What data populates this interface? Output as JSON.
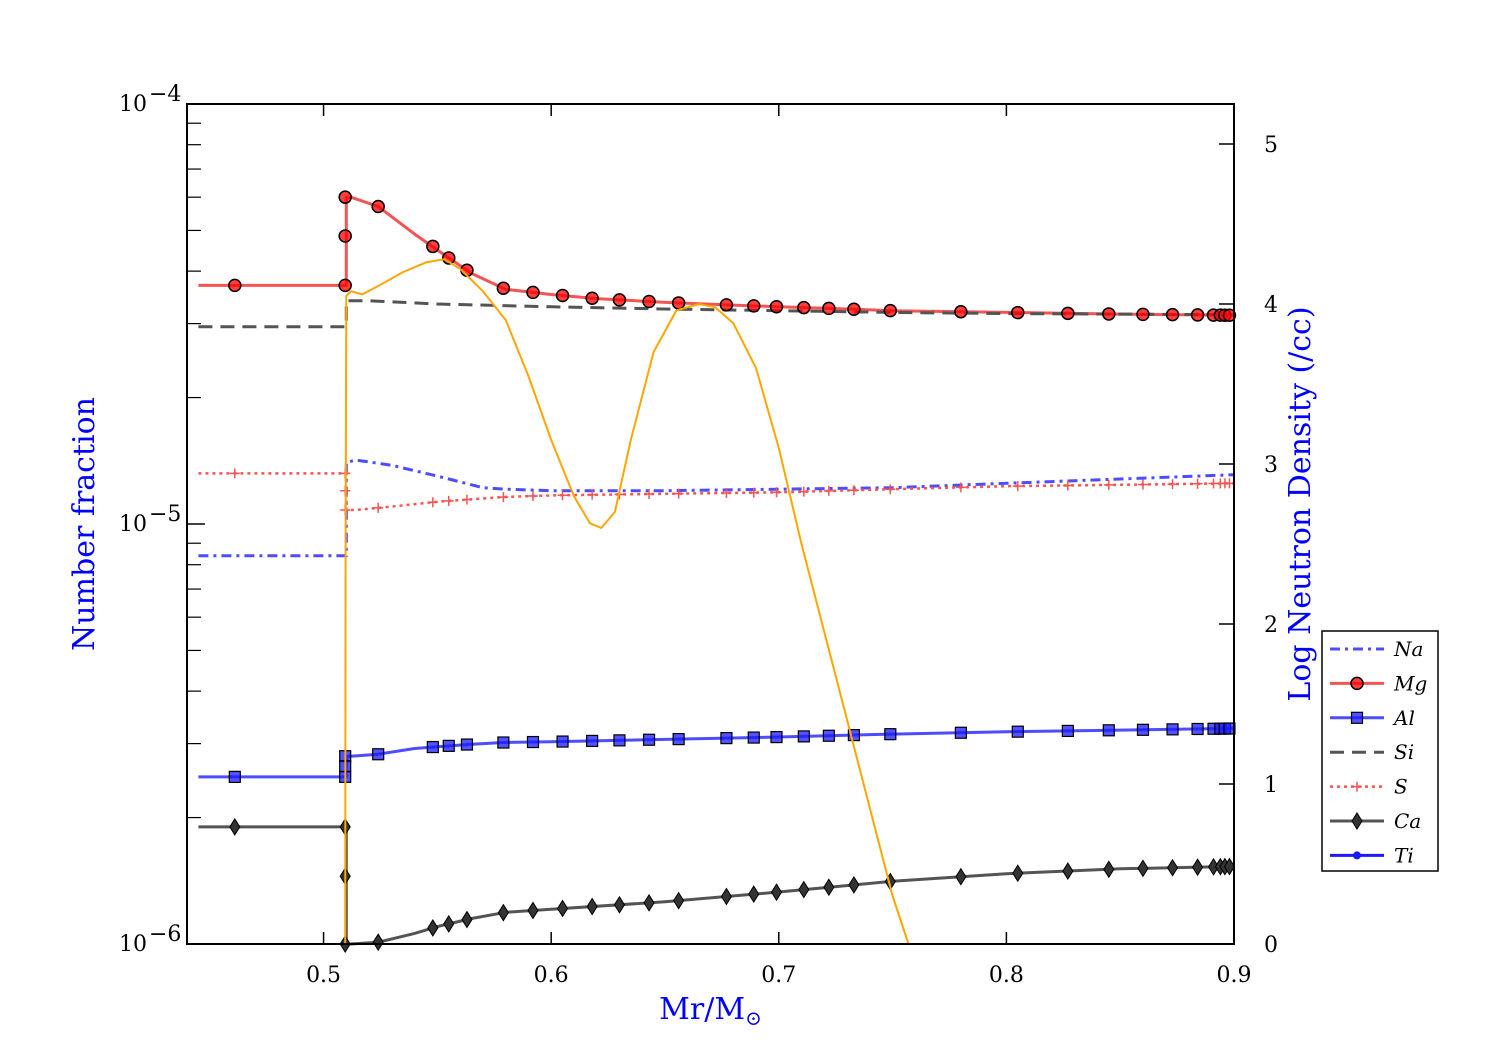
{
  "chart_data": {
    "type": "line",
    "xlabel": "Mr/M",
    "xlabel_sub": "⊙",
    "ylabel": "Number fraction",
    "y2label": "Log Neutron Density (/cc)",
    "label_color": "#0000ff",
    "xlim": [
      0.44,
      0.9
    ],
    "ylim": [
      1e-06,
      0.0001
    ],
    "yscale": "log",
    "y2lim": [
      0,
      5.25
    ],
    "xticks": [
      0.5,
      0.6,
      0.7,
      0.8,
      0.9
    ],
    "xtick_labels": [
      "0.5",
      "0.6",
      "0.7",
      "0.8",
      "0.9"
    ],
    "yticks": [
      0.0001,
      1e-05,
      1e-06
    ],
    "ytick_base": [
      "10",
      "10",
      "10"
    ],
    "ytick_exp": [
      "−4",
      "−5",
      "−6"
    ],
    "y2ticks": [
      0,
      1,
      2,
      3,
      4,
      5
    ],
    "y2tick_labels": [
      "0",
      "1",
      "2",
      "3",
      "4",
      "5"
    ],
    "legend_position": "lower-right outside",
    "series": [
      {
        "name": "Na",
        "color": "#4d4dff",
        "dash": "10,5,3,5",
        "marker": "none",
        "width": 3,
        "x": [
          0.445,
          0.51,
          0.51,
          0.514,
          0.53,
          0.55,
          0.57,
          0.58,
          0.6,
          0.65,
          0.7,
          0.75,
          0.8,
          0.85,
          0.9
        ],
        "y": [
          8.4e-06,
          8.4e-06,
          1.4e-05,
          1.42e-05,
          1.38e-05,
          1.3e-05,
          1.22e-05,
          1.21e-05,
          1.2e-05,
          1.2e-05,
          1.21e-05,
          1.22e-05,
          1.25e-05,
          1.28e-05,
          1.31e-05
        ],
        "markers_x": []
      },
      {
        "name": "Mg",
        "color": "#f55454",
        "dash": "",
        "marker": "circle",
        "width": 3,
        "x": [
          0.445,
          0.46,
          0.51,
          0.51,
          0.512,
          0.524,
          0.54,
          0.555,
          0.565,
          0.58,
          0.6,
          0.62,
          0.65,
          0.68,
          0.7,
          0.73,
          0.75,
          0.8,
          0.85,
          0.9
        ],
        "y": [
          3.7e-05,
          3.7e-05,
          3.7e-05,
          6e-05,
          6e-05,
          5.7e-05,
          4.9e-05,
          4.3e-05,
          3.95e-05,
          3.62e-05,
          3.52e-05,
          3.44e-05,
          3.37e-05,
          3.32e-05,
          3.29e-05,
          3.25e-05,
          3.22e-05,
          3.19e-05,
          3.16e-05,
          3.14e-05
        ],
        "markers_x": [
          0.461,
          0.5095,
          0.5095,
          0.5095,
          0.524,
          0.548,
          0.555,
          0.563,
          0.579,
          0.592,
          0.605,
          0.618,
          0.63,
          0.643,
          0.656,
          0.677,
          0.689,
          0.699,
          0.711,
          0.722,
          0.733,
          0.749,
          0.78,
          0.805,
          0.827,
          0.845,
          0.86,
          0.873,
          0.884,
          0.891,
          0.894,
          0.896,
          0.898
        ]
      },
      {
        "name": "Al",
        "color": "#4d4dff",
        "dash": "",
        "marker": "square",
        "width": 3,
        "x": [
          0.445,
          0.46,
          0.51,
          0.51,
          0.512,
          0.524,
          0.54,
          0.55,
          0.565,
          0.58,
          0.6,
          0.65,
          0.7,
          0.75,
          0.8,
          0.85,
          0.9
        ],
        "y": [
          2.5e-06,
          2.5e-06,
          2.5e-06,
          2.8e-06,
          2.8e-06,
          2.83e-06,
          2.92e-06,
          2.95e-06,
          2.99e-06,
          3.02e-06,
          3.03e-06,
          3.07e-06,
          3.11e-06,
          3.16e-06,
          3.2e-06,
          3.23e-06,
          3.26e-06
        ],
        "markers_x": [
          0.461,
          0.5095,
          0.5095,
          0.5095,
          0.524,
          0.548,
          0.555,
          0.563,
          0.579,
          0.592,
          0.605,
          0.618,
          0.63,
          0.643,
          0.656,
          0.677,
          0.689,
          0.699,
          0.711,
          0.722,
          0.733,
          0.749,
          0.78,
          0.805,
          0.827,
          0.845,
          0.86,
          0.873,
          0.884,
          0.891,
          0.894,
          0.896,
          0.898
        ]
      },
      {
        "name": "Si",
        "color": "#545454",
        "dash": "14,8",
        "marker": "none",
        "width": 3,
        "x": [
          0.445,
          0.51,
          0.51,
          0.52,
          0.55,
          0.6,
          0.65,
          0.7,
          0.75,
          0.8,
          0.85,
          0.9
        ],
        "y": [
          2.95e-05,
          2.95e-05,
          3.4e-05,
          3.4e-05,
          3.34e-05,
          3.29e-05,
          3.25e-05,
          3.22e-05,
          3.19e-05,
          3.17e-05,
          3.16e-05,
          3.15e-05
        ],
        "markers_x": []
      },
      {
        "name": "S",
        "color": "#f55454",
        "dash": "3,4",
        "marker": "plus",
        "width": 2.5,
        "x": [
          0.445,
          0.51,
          0.51,
          0.514,
          0.53,
          0.55,
          0.58,
          0.6,
          0.65,
          0.7,
          0.75,
          0.8,
          0.85,
          0.9
        ],
        "y": [
          1.32e-05,
          1.32e-05,
          1.08e-05,
          1.08e-05,
          1.1e-05,
          1.13e-05,
          1.16e-05,
          1.17e-05,
          1.18e-05,
          1.19e-05,
          1.21e-05,
          1.23e-05,
          1.24e-05,
          1.25e-05
        ],
        "markers_x": [
          0.461,
          0.5095,
          0.5095,
          0.5095,
          0.524,
          0.548,
          0.555,
          0.563,
          0.579,
          0.592,
          0.605,
          0.618,
          0.63,
          0.643,
          0.656,
          0.677,
          0.689,
          0.699,
          0.711,
          0.722,
          0.733,
          0.749,
          0.78,
          0.805,
          0.827,
          0.845,
          0.86,
          0.873,
          0.884,
          0.891,
          0.894,
          0.896,
          0.898
        ]
      },
      {
        "name": "Ca",
        "color": "#545454",
        "dash": "",
        "marker": "diamond",
        "width": 3,
        "x": [
          0.445,
          0.46,
          0.51,
          0.51,
          0.512,
          0.524,
          0.54,
          0.55,
          0.565,
          0.58,
          0.6,
          0.65,
          0.7,
          0.75,
          0.8,
          0.85,
          0.9
        ],
        "y": [
          1.9e-06,
          1.9e-06,
          1.9e-06,
          1e-06,
          1e-06,
          1.01e-06,
          1.06e-06,
          1.1e-06,
          1.15e-06,
          1.19e-06,
          1.21e-06,
          1.26e-06,
          1.33e-06,
          1.41e-06,
          1.47e-06,
          1.51e-06,
          1.53e-06
        ],
        "markers_x": [
          0.461,
          0.5095,
          0.5095,
          0.5095,
          0.524,
          0.548,
          0.555,
          0.563,
          0.579,
          0.592,
          0.605,
          0.618,
          0.63,
          0.643,
          0.656,
          0.677,
          0.689,
          0.699,
          0.711,
          0.722,
          0.733,
          0.749,
          0.78,
          0.805,
          0.827,
          0.845,
          0.86,
          0.873,
          0.884,
          0.891,
          0.894,
          0.896,
          0.898
        ]
      },
      {
        "name": "Ti",
        "color": "#1a1aff",
        "dash": "",
        "marker": "dot",
        "width": 3,
        "x": [],
        "y": [],
        "markers_x": []
      }
    ],
    "neutron_density": {
      "color": "#ffa500",
      "axis": "right",
      "x": [
        0.5095,
        0.5097,
        0.51,
        0.512,
        0.517,
        0.525,
        0.535,
        0.545,
        0.553,
        0.56,
        0.57,
        0.58,
        0.59,
        0.6,
        0.61,
        0.617,
        0.622,
        0.628,
        0.635,
        0.645,
        0.655,
        0.665,
        0.672,
        0.68,
        0.69,
        0.7,
        0.71,
        0.72,
        0.73,
        0.74,
        0.75,
        0.757
      ],
      "y": [
        0.0,
        2.5,
        4.05,
        4.08,
        4.06,
        4.12,
        4.2,
        4.26,
        4.28,
        4.22,
        4.08,
        3.9,
        3.55,
        3.15,
        2.8,
        2.63,
        2.6,
        2.7,
        3.15,
        3.7,
        3.96,
        4.0,
        3.98,
        3.88,
        3.6,
        3.1,
        2.5,
        1.95,
        1.4,
        0.85,
        0.3,
        0.0
      ]
    }
  }
}
